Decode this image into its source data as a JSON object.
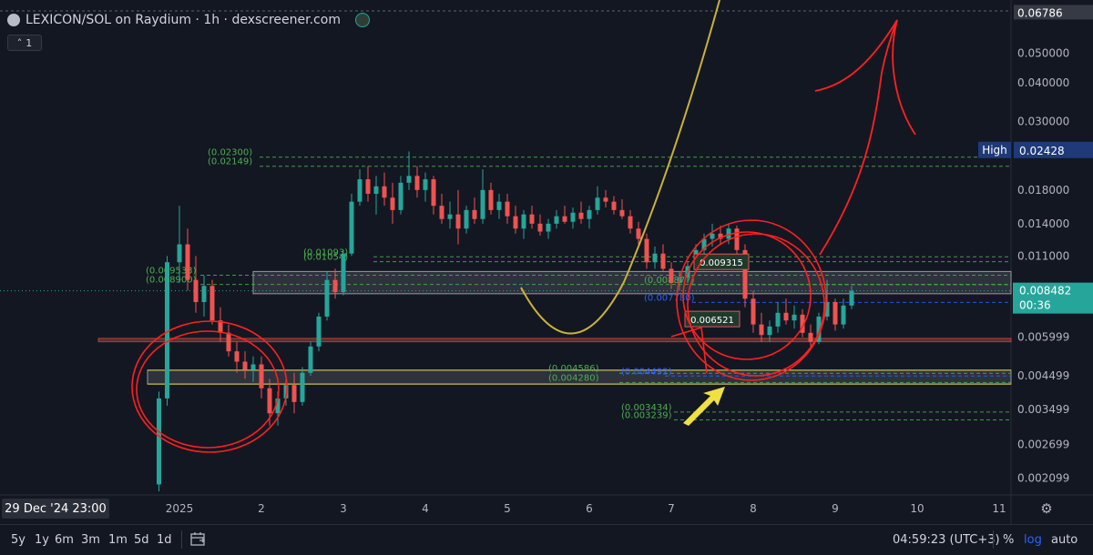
{
  "header": {
    "title": "LEXICON/SOL on Raydium · 1h · dexscreener.com",
    "collapse_label": "1"
  },
  "colors": {
    "background": "#131722",
    "up": "#26a69a",
    "down": "#ef5350",
    "fib_green": "#4caf50",
    "fib_blue": "#2962ff",
    "yellow_curve": "#c9b23a",
    "annotation_red": "#ff2020",
    "price_badge": "#26a69a"
  },
  "chart_data": {
    "type": "candlestick",
    "y_scale": "log",
    "ylim": [
      0.0019,
      0.0685
    ],
    "y_ticks": [
      "0.050000",
      "0.040000",
      "0.030000",
      "0.018000",
      "0.014000",
      "0.011000",
      "0.005999",
      "0.004499",
      "0.003499",
      "0.002699",
      "0.002099"
    ],
    "top_value": "0.06786",
    "x_ticks": [
      "2025",
      "2",
      "3",
      "4",
      "5",
      "6",
      "7",
      "8",
      "9",
      "10",
      "11"
    ],
    "crosshair_time": "29 Dec '24  23:00",
    "current_price": "0.008482",
    "countdown": "00:36",
    "high_label": "High",
    "high_value": "0.02428",
    "levels": [
      {
        "label": "(0.02300)",
        "value": 0.023,
        "color": "#4caf50"
      },
      {
        "label": "(0.02149)",
        "value": 0.02149,
        "color": "#4caf50"
      },
      {
        "label": "(0.01093)",
        "value": 0.01093,
        "color": "#4caf50"
      },
      {
        "label": "(0.01054)",
        "value": 0.01054,
        "color": "#4caf50"
      },
      {
        "label": "(0.009533)",
        "value": 0.009533,
        "color": "#4caf50"
      },
      {
        "label": "(0.008900)",
        "value": 0.0089,
        "color": "#4caf50"
      },
      {
        "label": "(0.008877)",
        "value": 0.00888,
        "color": "#4caf50"
      },
      {
        "label": "(0.007780)",
        "value": 0.00778,
        "color": "#2962ff"
      },
      {
        "label": "(0.004586)",
        "value": 0.004586,
        "color": "#4caf50"
      },
      {
        "label": "(0.004280)",
        "value": 0.00428,
        "color": "#4caf50"
      },
      {
        "label": "(0.004492)",
        "value": 0.004492,
        "color": "#2962ff"
      },
      {
        "label": "(0.003434)",
        "value": 0.003434,
        "color": "#4caf50"
      },
      {
        "label": "(0.003239)",
        "value": 0.003239,
        "color": "#4caf50"
      }
    ],
    "boxes": [
      {
        "name": "resistance-zone",
        "top": 0.0098,
        "bottom": 0.0083,
        "color": "#787b86"
      },
      {
        "name": "support-zone",
        "top": 0.00469,
        "bottom": 0.00423,
        "color": "#787b86"
      },
      {
        "name": "red-support-line",
        "top": 0.00595,
        "bottom": 0.0058,
        "color": "#ef5350"
      }
    ],
    "notes": [
      {
        "label": "0.009315",
        "value": 0.0105
      },
      {
        "label": "0.006521",
        "value": 0.00685
      }
    ],
    "candles": [
      {
        "t": -0.25,
        "o": 0.002,
        "h": 0.004,
        "l": 0.0019,
        "c": 0.0038
      },
      {
        "t": -0.15,
        "o": 0.0038,
        "h": 0.011,
        "l": 0.0036,
        "c": 0.0105
      },
      {
        "t": 0.0,
        "o": 0.0105,
        "h": 0.016,
        "l": 0.009,
        "c": 0.012
      },
      {
        "t": 0.1,
        "o": 0.012,
        "h": 0.0135,
        "l": 0.0085,
        "c": 0.0092
      },
      {
        "t": 0.2,
        "o": 0.0092,
        "h": 0.011,
        "l": 0.0072,
        "c": 0.0078
      },
      {
        "t": 0.3,
        "o": 0.0078,
        "h": 0.0095,
        "l": 0.007,
        "c": 0.0088
      },
      {
        "t": 0.4,
        "o": 0.0088,
        "h": 0.0092,
        "l": 0.0066,
        "c": 0.0068
      },
      {
        "t": 0.5,
        "o": 0.0068,
        "h": 0.0075,
        "l": 0.0058,
        "c": 0.0062
      },
      {
        "t": 0.6,
        "o": 0.0062,
        "h": 0.0066,
        "l": 0.0052,
        "c": 0.0054
      },
      {
        "t": 0.7,
        "o": 0.0054,
        "h": 0.0058,
        "l": 0.0046,
        "c": 0.005
      },
      {
        "t": 0.8,
        "o": 0.005,
        "h": 0.0054,
        "l": 0.0044,
        "c": 0.0047
      },
      {
        "t": 0.9,
        "o": 0.0047,
        "h": 0.0052,
        "l": 0.0043,
        "c": 0.0049
      },
      {
        "t": 1.0,
        "o": 0.0049,
        "h": 0.0052,
        "l": 0.0038,
        "c": 0.0041
      },
      {
        "t": 1.1,
        "o": 0.0041,
        "h": 0.0044,
        "l": 0.0031,
        "c": 0.0034
      },
      {
        "t": 1.2,
        "o": 0.0034,
        "h": 0.004,
        "l": 0.0031,
        "c": 0.0038
      },
      {
        "t": 1.3,
        "o": 0.0038,
        "h": 0.0044,
        "l": 0.0036,
        "c": 0.0042
      },
      {
        "t": 1.4,
        "o": 0.0042,
        "h": 0.0046,
        "l": 0.0034,
        "c": 0.0037
      },
      {
        "t": 1.5,
        "o": 0.0037,
        "h": 0.0048,
        "l": 0.0036,
        "c": 0.0046
      },
      {
        "t": 1.6,
        "o": 0.0046,
        "h": 0.0058,
        "l": 0.0045,
        "c": 0.0056
      },
      {
        "t": 1.7,
        "o": 0.0056,
        "h": 0.0072,
        "l": 0.0054,
        "c": 0.007
      },
      {
        "t": 1.8,
        "o": 0.007,
        "h": 0.0098,
        "l": 0.0068,
        "c": 0.0092
      },
      {
        "t": 1.9,
        "o": 0.0092,
        "h": 0.01,
        "l": 0.008,
        "c": 0.0084
      },
      {
        "t": 2.0,
        "o": 0.0084,
        "h": 0.0115,
        "l": 0.0082,
        "c": 0.0112
      },
      {
        "t": 2.1,
        "o": 0.0112,
        "h": 0.0175,
        "l": 0.011,
        "c": 0.0165
      },
      {
        "t": 2.2,
        "o": 0.0165,
        "h": 0.021,
        "l": 0.016,
        "c": 0.0195
      },
      {
        "t": 2.3,
        "o": 0.0195,
        "h": 0.0215,
        "l": 0.0165,
        "c": 0.0175
      },
      {
        "t": 2.4,
        "o": 0.0175,
        "h": 0.02,
        "l": 0.015,
        "c": 0.0185
      },
      {
        "t": 2.5,
        "o": 0.0185,
        "h": 0.0205,
        "l": 0.016,
        "c": 0.017
      },
      {
        "t": 2.6,
        "o": 0.017,
        "h": 0.019,
        "l": 0.014,
        "c": 0.0155
      },
      {
        "t": 2.7,
        "o": 0.0155,
        "h": 0.02,
        "l": 0.015,
        "c": 0.019
      },
      {
        "t": 2.8,
        "o": 0.019,
        "h": 0.024,
        "l": 0.018,
        "c": 0.02
      },
      {
        "t": 2.9,
        "o": 0.02,
        "h": 0.0215,
        "l": 0.017,
        "c": 0.018
      },
      {
        "t": 3.0,
        "o": 0.018,
        "h": 0.0205,
        "l": 0.0165,
        "c": 0.0195
      },
      {
        "t": 3.1,
        "o": 0.0195,
        "h": 0.02,
        "l": 0.015,
        "c": 0.016
      },
      {
        "t": 3.2,
        "o": 0.016,
        "h": 0.0175,
        "l": 0.014,
        "c": 0.0145
      },
      {
        "t": 3.3,
        "o": 0.0145,
        "h": 0.0165,
        "l": 0.0135,
        "c": 0.015
      },
      {
        "t": 3.4,
        "o": 0.015,
        "h": 0.018,
        "l": 0.012,
        "c": 0.0135
      },
      {
        "t": 3.5,
        "o": 0.0135,
        "h": 0.016,
        "l": 0.013,
        "c": 0.0155
      },
      {
        "t": 3.6,
        "o": 0.0155,
        "h": 0.017,
        "l": 0.014,
        "c": 0.0145
      },
      {
        "t": 3.7,
        "o": 0.0145,
        "h": 0.021,
        "l": 0.014,
        "c": 0.018
      },
      {
        "t": 3.8,
        "o": 0.018,
        "h": 0.019,
        "l": 0.015,
        "c": 0.0155
      },
      {
        "t": 3.9,
        "o": 0.0155,
        "h": 0.0175,
        "l": 0.0145,
        "c": 0.0165
      },
      {
        "t": 4.0,
        "o": 0.0165,
        "h": 0.0175,
        "l": 0.014,
        "c": 0.0148
      },
      {
        "t": 4.1,
        "o": 0.0148,
        "h": 0.016,
        "l": 0.013,
        "c": 0.0135
      },
      {
        "t": 4.2,
        "o": 0.0135,
        "h": 0.0155,
        "l": 0.0125,
        "c": 0.015
      },
      {
        "t": 4.3,
        "o": 0.015,
        "h": 0.016,
        "l": 0.0135,
        "c": 0.014
      },
      {
        "t": 4.4,
        "o": 0.014,
        "h": 0.015,
        "l": 0.0128,
        "c": 0.0132
      },
      {
        "t": 4.5,
        "o": 0.0132,
        "h": 0.0145,
        "l": 0.0125,
        "c": 0.014
      },
      {
        "t": 4.6,
        "o": 0.014,
        "h": 0.0155,
        "l": 0.0135,
        "c": 0.0148
      },
      {
        "t": 4.7,
        "o": 0.0148,
        "h": 0.016,
        "l": 0.014,
        "c": 0.0142
      },
      {
        "t": 4.8,
        "o": 0.0142,
        "h": 0.0158,
        "l": 0.0135,
        "c": 0.0152
      },
      {
        "t": 4.9,
        "o": 0.0152,
        "h": 0.0165,
        "l": 0.014,
        "c": 0.0145
      },
      {
        "t": 5.0,
        "o": 0.0145,
        "h": 0.016,
        "l": 0.0135,
        "c": 0.0155
      },
      {
        "t": 5.1,
        "o": 0.0155,
        "h": 0.0185,
        "l": 0.015,
        "c": 0.017
      },
      {
        "t": 5.2,
        "o": 0.017,
        "h": 0.018,
        "l": 0.0158,
        "c": 0.0165
      },
      {
        "t": 5.3,
        "o": 0.0165,
        "h": 0.0172,
        "l": 0.015,
        "c": 0.0155
      },
      {
        "t": 5.4,
        "o": 0.0155,
        "h": 0.0168,
        "l": 0.0145,
        "c": 0.0148
      },
      {
        "t": 5.5,
        "o": 0.0148,
        "h": 0.0155,
        "l": 0.013,
        "c": 0.0135
      },
      {
        "t": 5.6,
        "o": 0.0135,
        "h": 0.0142,
        "l": 0.012,
        "c": 0.0125
      },
      {
        "t": 5.7,
        "o": 0.0125,
        "h": 0.013,
        "l": 0.01,
        "c": 0.0105
      },
      {
        "t": 5.8,
        "o": 0.0105,
        "h": 0.0118,
        "l": 0.01,
        "c": 0.0112
      },
      {
        "t": 5.9,
        "o": 0.0112,
        "h": 0.012,
        "l": 0.0098,
        "c": 0.01
      },
      {
        "t": 6.0,
        "o": 0.01,
        "h": 0.0105,
        "l": 0.0086,
        "c": 0.009
      },
      {
        "t": 6.1,
        "o": 0.009,
        "h": 0.0098,
        "l": 0.0085,
        "c": 0.0094
      },
      {
        "t": 6.2,
        "o": 0.0094,
        "h": 0.0105,
        "l": 0.009,
        "c": 0.0102
      },
      {
        "t": 6.3,
        "o": 0.0102,
        "h": 0.012,
        "l": 0.0098,
        "c": 0.0115
      },
      {
        "t": 6.4,
        "o": 0.0115,
        "h": 0.013,
        "l": 0.011,
        "c": 0.0125
      },
      {
        "t": 6.5,
        "o": 0.0125,
        "h": 0.014,
        "l": 0.0118,
        "c": 0.013
      },
      {
        "t": 6.6,
        "o": 0.013,
        "h": 0.0138,
        "l": 0.012,
        "c": 0.0125
      },
      {
        "t": 6.7,
        "o": 0.0125,
        "h": 0.014,
        "l": 0.012,
        "c": 0.0135
      },
      {
        "t": 6.8,
        "o": 0.0135,
        "h": 0.0138,
        "l": 0.0112,
        "c": 0.0115
      },
      {
        "t": 6.9,
        "o": 0.0115,
        "h": 0.012,
        "l": 0.0075,
        "c": 0.008
      },
      {
        "t": 7.0,
        "o": 0.008,
        "h": 0.0085,
        "l": 0.0062,
        "c": 0.0066
      },
      {
        "t": 7.1,
        "o": 0.0066,
        "h": 0.0072,
        "l": 0.0058,
        "c": 0.0061
      },
      {
        "t": 7.2,
        "o": 0.0061,
        "h": 0.0068,
        "l": 0.0058,
        "c": 0.0065
      },
      {
        "t": 7.3,
        "o": 0.0065,
        "h": 0.0078,
        "l": 0.0062,
        "c": 0.0072
      },
      {
        "t": 7.4,
        "o": 0.0072,
        "h": 0.008,
        "l": 0.0066,
        "c": 0.0068
      },
      {
        "t": 7.5,
        "o": 0.0068,
        "h": 0.0076,
        "l": 0.0064,
        "c": 0.0071
      },
      {
        "t": 7.6,
        "o": 0.0071,
        "h": 0.0074,
        "l": 0.006,
        "c": 0.0062
      },
      {
        "t": 7.7,
        "o": 0.0062,
        "h": 0.0066,
        "l": 0.0056,
        "c": 0.0058
      },
      {
        "t": 7.8,
        "o": 0.0058,
        "h": 0.0072,
        "l": 0.0057,
        "c": 0.007
      },
      {
        "t": 7.9,
        "o": 0.007,
        "h": 0.0092,
        "l": 0.0068,
        "c": 0.0078
      },
      {
        "t": 8.0,
        "o": 0.0078,
        "h": 0.008,
        "l": 0.0063,
        "c": 0.0066
      },
      {
        "t": 8.1,
        "o": 0.0066,
        "h": 0.008,
        "l": 0.0064,
        "c": 0.0076
      },
      {
        "t": 8.2,
        "o": 0.0076,
        "h": 0.0088,
        "l": 0.0074,
        "c": 0.008482
      }
    ]
  },
  "bottom_bar": {
    "timeframes": [
      "5y",
      "1y",
      "6m",
      "3m",
      "1m",
      "5d",
      "1d"
    ],
    "clock": "04:59:23 (UTC+3)",
    "percent_label": "%",
    "log_label": "log",
    "auto_label": "auto"
  }
}
